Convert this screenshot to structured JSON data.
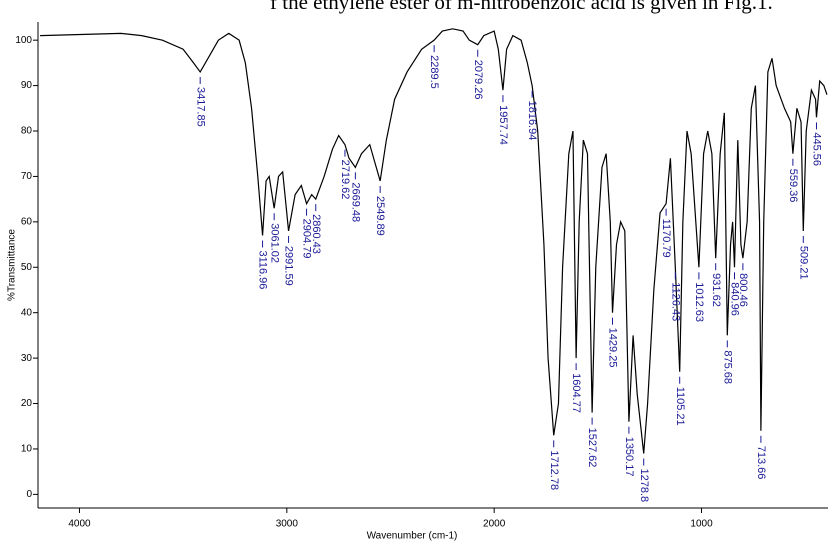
{
  "chart_data": {
    "type": "line",
    "caption": "f the ethylene ester of m-nitrobenzoic acid is given in Fig.1.",
    "x_label": "Wavenumber (cm-1)",
    "y_label": "%Transmittance",
    "xlim": [
      4200,
      390
    ],
    "ylim": [
      -3,
      104
    ],
    "xticks": [
      4000,
      3000,
      2000,
      1000
    ],
    "yticks": [
      0,
      10,
      20,
      30,
      40,
      50,
      60,
      70,
      80,
      90,
      100
    ],
    "color": "#000000",
    "annotation_color": "#1a1a96",
    "x": [
      4190,
      3800,
      3700,
      3600,
      3500,
      3450,
      3417.85,
      3380,
      3330,
      3280,
      3230,
      3200,
      3170,
      3140,
      3116.96,
      3100,
      3085,
      3061.02,
      3040,
      3020,
      2991.59,
      2960,
      2930,
      2904.79,
      2880,
      2860.43,
      2820,
      2780,
      2750,
      2719.62,
      2700,
      2669.48,
      2640,
      2600,
      2549.89,
      2520,
      2480,
      2420,
      2350,
      2289.5,
      2250,
      2200,
      2150,
      2120,
      2079.26,
      2050,
      2000,
      1980,
      1957.74,
      1940,
      1910,
      1870,
      1840,
      1816.94,
      1790,
      1760,
      1740,
      1712.78,
      1690,
      1670,
      1640,
      1620,
      1604.77,
      1590,
      1570,
      1550,
      1527.62,
      1510,
      1480,
      1460,
      1440,
      1429.25,
      1410,
      1390,
      1370,
      1350.17,
      1330,
      1310,
      1278.8,
      1260,
      1230,
      1200,
      1170.79,
      1150,
      1126.43,
      1105.21,
      1090,
      1070,
      1050,
      1012.63,
      990,
      970,
      950,
      931.62,
      910,
      890,
      875.68,
      860,
      850,
      840.96,
      825,
      810,
      800.46,
      780,
      760,
      740,
      720,
      713.66,
      700,
      680,
      660,
      640,
      600,
      570,
      559.36,
      540,
      520,
      509.21,
      495,
      470,
      450,
      445.56,
      430,
      410,
      395
    ],
    "values": [
      101,
      101.5,
      101,
      100,
      98,
      95,
      93,
      96,
      100,
      101.5,
      100,
      95,
      85,
      70,
      57,
      69,
      70,
      63,
      70,
      71,
      58,
      66,
      68,
      64,
      66,
      65,
      70,
      76,
      79,
      77,
      74,
      72,
      75,
      77,
      69,
      78,
      87,
      93,
      98,
      100,
      102,
      102.5,
      102,
      100,
      99,
      101,
      102,
      98,
      89,
      98,
      101,
      100,
      95,
      90,
      80,
      55,
      30,
      13,
      20,
      50,
      75,
      80,
      30,
      60,
      78,
      75,
      18,
      50,
      72,
      75,
      60,
      40,
      55,
      60,
      58,
      16,
      35,
      22,
      9,
      20,
      45,
      62,
      64,
      74,
      50,
      27,
      60,
      80,
      75,
      50,
      75,
      80,
      75,
      52,
      75,
      84,
      35,
      55,
      60,
      50,
      78,
      55,
      52,
      60,
      85,
      90,
      60,
      14,
      60,
      93,
      96,
      90,
      85,
      82,
      75,
      85,
      82,
      58,
      80,
      89,
      87,
      83,
      91,
      90,
      88
    ],
    "annotations": [
      {
        "x": 3417.85,
        "y": 93
      },
      {
        "x": 3116.96,
        "y": 57
      },
      {
        "x": 3061.02,
        "y": 63
      },
      {
        "x": 2991.59,
        "y": 58
      },
      {
        "x": 2904.79,
        "y": 64
      },
      {
        "x": 2860.43,
        "y": 65
      },
      {
        "x": 2719.62,
        "y": 77
      },
      {
        "x": 2669.48,
        "y": 72
      },
      {
        "x": 2549.89,
        "y": 69
      },
      {
        "x": 2289.5,
        "y": 100
      },
      {
        "x": 2079.26,
        "y": 99
      },
      {
        "x": 1957.74,
        "y": 89
      },
      {
        "x": 1816.94,
        "y": 90
      },
      {
        "x": 1712.78,
        "y": 13
      },
      {
        "x": 1604.77,
        "y": 30
      },
      {
        "x": 1527.62,
        "y": 18
      },
      {
        "x": 1429.25,
        "y": 40
      },
      {
        "x": 1350.17,
        "y": 16
      },
      {
        "x": 1278.8,
        "y": 9
      },
      {
        "x": 1170.79,
        "y": 64
      },
      {
        "x": 1126.43,
        "y": 50
      },
      {
        "x": 1105.21,
        "y": 27
      },
      {
        "x": 1012.63,
        "y": 50
      },
      {
        "x": 931.62,
        "y": 52
      },
      {
        "x": 875.68,
        "y": 35
      },
      {
        "x": 840.96,
        "y": 50
      },
      {
        "x": 800.46,
        "y": 52
      },
      {
        "x": 713.66,
        "y": 14
      },
      {
        "x": 559.36,
        "y": 75
      },
      {
        "x": 509.21,
        "y": 58
      },
      {
        "x": 445.56,
        "y": 83
      }
    ]
  }
}
